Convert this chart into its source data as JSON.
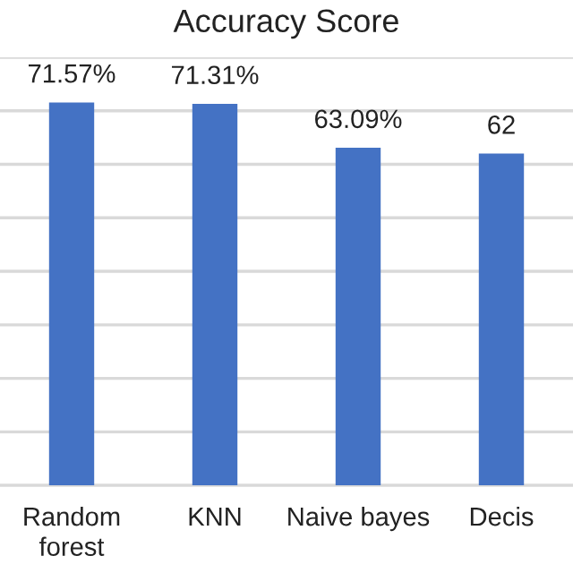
{
  "chart_data": {
    "type": "bar",
    "title": "Accuracy Score",
    "categories": [
      "Random\nforest",
      "KNN",
      "Naive bayes",
      "Decis"
    ],
    "values": [
      71.57,
      71.31,
      63.09,
      62
    ],
    "value_labels": [
      "71.57%",
      "71.31%",
      "63.09%",
      "62"
    ],
    "color": "#4472c4",
    "ylim": [
      0,
      80
    ],
    "yticks": [
      {
        "value": 0,
        "label": null
      },
      {
        "value": 10,
        "label": null
      },
      {
        "value": 20,
        "label": null
      },
      {
        "value": 30,
        "label": null
      },
      {
        "value": 40,
        "label": null
      },
      {
        "value": 50,
        "label": null
      },
      {
        "value": 60,
        "label": null
      },
      {
        "value": 70,
        "label": null
      },
      {
        "value": 80,
        "label": null
      }
    ],
    "tick_labels": "x",
    "grid": "y"
  }
}
